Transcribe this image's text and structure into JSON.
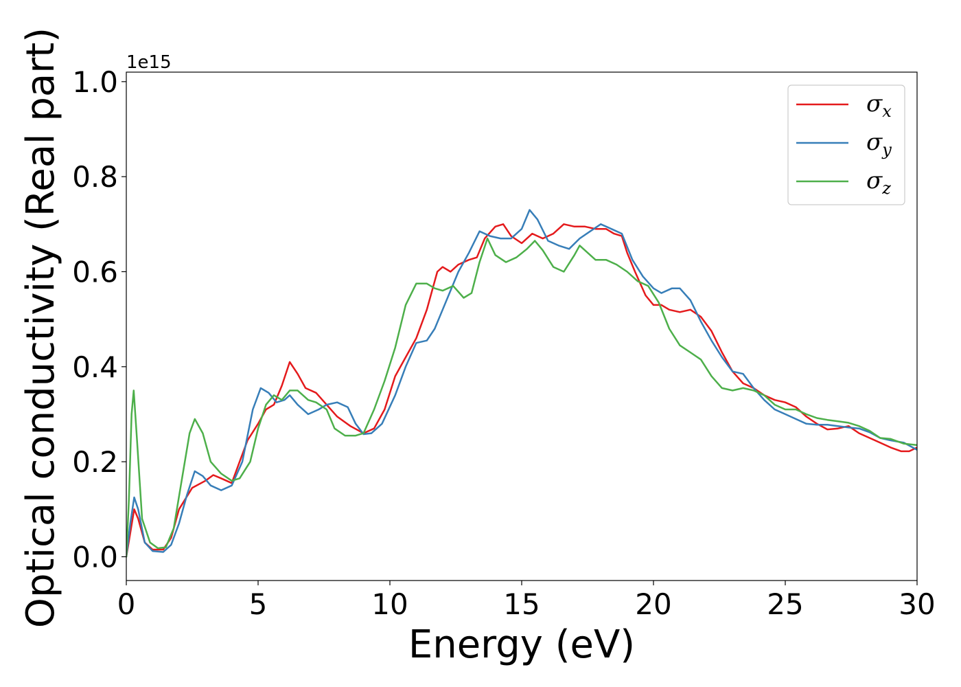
{
  "chart_data": {
    "type": "line",
    "title": "",
    "xlabel": "Energy (eV)",
    "ylabel": "Optical conductivity (Real part)",
    "y_offset_label": "1e15",
    "xlim": [
      0,
      30
    ],
    "ylim": [
      -0.05,
      1.02
    ],
    "xticks": [
      0,
      5,
      10,
      15,
      20,
      25,
      30
    ],
    "xtick_labels": [
      "0",
      "5",
      "10",
      "15",
      "20",
      "25",
      "30"
    ],
    "yticks": [
      0.0,
      0.2,
      0.4,
      0.6,
      0.8,
      1.0
    ],
    "ytick_labels": [
      "0.0",
      "0.2",
      "0.4",
      "0.6",
      "0.8",
      "1.0"
    ],
    "grid": false,
    "legend_position": "top-right",
    "series": [
      {
        "name": "σx",
        "symbol": "σ",
        "subscript": "x",
        "color": "#e41a1c",
        "points": [
          [
            0,
            0.0
          ],
          [
            0.15,
            0.05
          ],
          [
            0.3,
            0.1
          ],
          [
            0.45,
            0.08
          ],
          [
            0.7,
            0.03
          ],
          [
            1.0,
            0.015
          ],
          [
            1.4,
            0.015
          ],
          [
            1.7,
            0.04
          ],
          [
            2.0,
            0.1
          ],
          [
            2.5,
            0.145
          ],
          [
            3.0,
            0.16
          ],
          [
            3.3,
            0.172
          ],
          [
            3.6,
            0.165
          ],
          [
            4.0,
            0.155
          ],
          [
            4.3,
            0.2
          ],
          [
            4.6,
            0.245
          ],
          [
            5.0,
            0.28
          ],
          [
            5.3,
            0.31
          ],
          [
            5.6,
            0.32
          ],
          [
            5.9,
            0.36
          ],
          [
            6.2,
            0.41
          ],
          [
            6.5,
            0.385
          ],
          [
            6.8,
            0.355
          ],
          [
            7.2,
            0.345
          ],
          [
            7.6,
            0.32
          ],
          [
            8.0,
            0.295
          ],
          [
            8.5,
            0.275
          ],
          [
            9.0,
            0.26
          ],
          [
            9.4,
            0.27
          ],
          [
            9.8,
            0.31
          ],
          [
            10.2,
            0.38
          ],
          [
            10.6,
            0.42
          ],
          [
            11.0,
            0.46
          ],
          [
            11.4,
            0.52
          ],
          [
            11.8,
            0.6
          ],
          [
            12.0,
            0.61
          ],
          [
            12.3,
            0.6
          ],
          [
            12.6,
            0.615
          ],
          [
            13.0,
            0.625
          ],
          [
            13.3,
            0.63
          ],
          [
            13.6,
            0.67
          ],
          [
            14.0,
            0.695
          ],
          [
            14.3,
            0.7
          ],
          [
            14.6,
            0.675
          ],
          [
            15.0,
            0.66
          ],
          [
            15.4,
            0.68
          ],
          [
            15.8,
            0.67
          ],
          [
            16.2,
            0.68
          ],
          [
            16.6,
            0.7
          ],
          [
            17.0,
            0.695
          ],
          [
            17.4,
            0.695
          ],
          [
            17.8,
            0.69
          ],
          [
            18.2,
            0.69
          ],
          [
            18.5,
            0.68
          ],
          [
            18.8,
            0.675
          ],
          [
            19.0,
            0.64
          ],
          [
            19.3,
            0.6
          ],
          [
            19.7,
            0.55
          ],
          [
            20.0,
            0.53
          ],
          [
            20.3,
            0.53
          ],
          [
            20.6,
            0.52
          ],
          [
            21.0,
            0.515
          ],
          [
            21.4,
            0.52
          ],
          [
            21.8,
            0.505
          ],
          [
            22.2,
            0.475
          ],
          [
            22.6,
            0.43
          ],
          [
            23.0,
            0.39
          ],
          [
            23.4,
            0.365
          ],
          [
            23.8,
            0.355
          ],
          [
            24.2,
            0.34
          ],
          [
            24.6,
            0.33
          ],
          [
            25.0,
            0.325
          ],
          [
            25.4,
            0.315
          ],
          [
            25.8,
            0.295
          ],
          [
            26.2,
            0.28
          ],
          [
            26.6,
            0.268
          ],
          [
            27.0,
            0.27
          ],
          [
            27.4,
            0.275
          ],
          [
            27.8,
            0.26
          ],
          [
            28.2,
            0.25
          ],
          [
            28.6,
            0.24
          ],
          [
            29.0,
            0.23
          ],
          [
            29.4,
            0.222
          ],
          [
            29.7,
            0.222
          ],
          [
            30.0,
            0.23
          ]
        ]
      },
      {
        "name": "σy",
        "symbol": "σ",
        "subscript": "y",
        "color": "#377eb8",
        "points": [
          [
            0,
            0.0
          ],
          [
            0.15,
            0.07
          ],
          [
            0.3,
            0.125
          ],
          [
            0.45,
            0.1
          ],
          [
            0.7,
            0.03
          ],
          [
            1.0,
            0.012
          ],
          [
            1.4,
            0.01
          ],
          [
            1.7,
            0.025
          ],
          [
            2.0,
            0.07
          ],
          [
            2.3,
            0.13
          ],
          [
            2.6,
            0.18
          ],
          [
            2.9,
            0.17
          ],
          [
            3.2,
            0.15
          ],
          [
            3.6,
            0.14
          ],
          [
            4.0,
            0.15
          ],
          [
            4.4,
            0.2
          ],
          [
            4.8,
            0.31
          ],
          [
            5.1,
            0.355
          ],
          [
            5.4,
            0.345
          ],
          [
            5.7,
            0.325
          ],
          [
            6.0,
            0.33
          ],
          [
            6.2,
            0.34
          ],
          [
            6.5,
            0.32
          ],
          [
            6.9,
            0.3
          ],
          [
            7.3,
            0.31
          ],
          [
            7.6,
            0.32
          ],
          [
            8.0,
            0.325
          ],
          [
            8.4,
            0.315
          ],
          [
            8.7,
            0.28
          ],
          [
            9.0,
            0.258
          ],
          [
            9.3,
            0.26
          ],
          [
            9.7,
            0.28
          ],
          [
            10.2,
            0.34
          ],
          [
            10.6,
            0.4
          ],
          [
            11.0,
            0.45
          ],
          [
            11.4,
            0.455
          ],
          [
            11.7,
            0.48
          ],
          [
            12.0,
            0.52
          ],
          [
            12.3,
            0.56
          ],
          [
            12.6,
            0.6
          ],
          [
            13.0,
            0.64
          ],
          [
            13.4,
            0.685
          ],
          [
            13.8,
            0.675
          ],
          [
            14.2,
            0.67
          ],
          [
            14.6,
            0.67
          ],
          [
            15.0,
            0.69
          ],
          [
            15.3,
            0.73
          ],
          [
            15.6,
            0.71
          ],
          [
            16.0,
            0.665
          ],
          [
            16.4,
            0.655
          ],
          [
            16.8,
            0.648
          ],
          [
            17.2,
            0.67
          ],
          [
            17.6,
            0.685
          ],
          [
            18.0,
            0.7
          ],
          [
            18.4,
            0.69
          ],
          [
            18.8,
            0.68
          ],
          [
            19.2,
            0.625
          ],
          [
            19.6,
            0.59
          ],
          [
            20.0,
            0.565
          ],
          [
            20.3,
            0.555
          ],
          [
            20.7,
            0.565
          ],
          [
            21.0,
            0.565
          ],
          [
            21.4,
            0.54
          ],
          [
            21.8,
            0.495
          ],
          [
            22.2,
            0.455
          ],
          [
            22.6,
            0.42
          ],
          [
            23.0,
            0.39
          ],
          [
            23.4,
            0.385
          ],
          [
            23.8,
            0.355
          ],
          [
            24.2,
            0.33
          ],
          [
            24.6,
            0.31
          ],
          [
            25.0,
            0.3
          ],
          [
            25.4,
            0.29
          ],
          [
            25.8,
            0.28
          ],
          [
            26.2,
            0.278
          ],
          [
            26.6,
            0.278
          ],
          [
            27.0,
            0.275
          ],
          [
            27.4,
            0.272
          ],
          [
            27.8,
            0.27
          ],
          [
            28.2,
            0.262
          ],
          [
            28.6,
            0.25
          ],
          [
            29.0,
            0.245
          ],
          [
            29.5,
            0.24
          ],
          [
            30.0,
            0.225
          ]
        ]
      },
      {
        "name": "σz",
        "symbol": "σ",
        "subscript": "z",
        "color": "#4daf4a",
        "points": [
          [
            0,
            0.0
          ],
          [
            0.1,
            0.12
          ],
          [
            0.2,
            0.3
          ],
          [
            0.28,
            0.35
          ],
          [
            0.4,
            0.25
          ],
          [
            0.6,
            0.08
          ],
          [
            0.9,
            0.03
          ],
          [
            1.2,
            0.018
          ],
          [
            1.5,
            0.02
          ],
          [
            1.8,
            0.06
          ],
          [
            2.1,
            0.16
          ],
          [
            2.4,
            0.26
          ],
          [
            2.6,
            0.29
          ],
          [
            2.9,
            0.26
          ],
          [
            3.2,
            0.2
          ],
          [
            3.6,
            0.175
          ],
          [
            4.0,
            0.16
          ],
          [
            4.3,
            0.165
          ],
          [
            4.7,
            0.2
          ],
          [
            5.0,
            0.27
          ],
          [
            5.3,
            0.32
          ],
          [
            5.6,
            0.34
          ],
          [
            5.9,
            0.33
          ],
          [
            6.2,
            0.35
          ],
          [
            6.5,
            0.35
          ],
          [
            6.9,
            0.33
          ],
          [
            7.2,
            0.325
          ],
          [
            7.6,
            0.31
          ],
          [
            7.9,
            0.27
          ],
          [
            8.3,
            0.255
          ],
          [
            8.7,
            0.255
          ],
          [
            9.0,
            0.26
          ],
          [
            9.4,
            0.31
          ],
          [
            9.8,
            0.37
          ],
          [
            10.2,
            0.44
          ],
          [
            10.6,
            0.53
          ],
          [
            11.0,
            0.575
          ],
          [
            11.4,
            0.575
          ],
          [
            11.7,
            0.565
          ],
          [
            12.0,
            0.56
          ],
          [
            12.4,
            0.57
          ],
          [
            12.8,
            0.545
          ],
          [
            13.1,
            0.555
          ],
          [
            13.4,
            0.62
          ],
          [
            13.7,
            0.67
          ],
          [
            14.0,
            0.635
          ],
          [
            14.4,
            0.62
          ],
          [
            14.8,
            0.63
          ],
          [
            15.2,
            0.648
          ],
          [
            15.5,
            0.665
          ],
          [
            15.8,
            0.645
          ],
          [
            16.2,
            0.61
          ],
          [
            16.6,
            0.6
          ],
          [
            17.0,
            0.635
          ],
          [
            17.2,
            0.655
          ],
          [
            17.5,
            0.64
          ],
          [
            17.8,
            0.625
          ],
          [
            18.2,
            0.625
          ],
          [
            18.6,
            0.615
          ],
          [
            19.0,
            0.6
          ],
          [
            19.4,
            0.58
          ],
          [
            19.8,
            0.57
          ],
          [
            20.2,
            0.535
          ],
          [
            20.6,
            0.48
          ],
          [
            21.0,
            0.445
          ],
          [
            21.4,
            0.43
          ],
          [
            21.8,
            0.415
          ],
          [
            22.2,
            0.38
          ],
          [
            22.6,
            0.355
          ],
          [
            23.0,
            0.35
          ],
          [
            23.4,
            0.355
          ],
          [
            23.8,
            0.35
          ],
          [
            24.2,
            0.34
          ],
          [
            24.6,
            0.32
          ],
          [
            25.0,
            0.31
          ],
          [
            25.4,
            0.31
          ],
          [
            25.8,
            0.3
          ],
          [
            26.2,
            0.292
          ],
          [
            26.6,
            0.288
          ],
          [
            27.0,
            0.285
          ],
          [
            27.4,
            0.282
          ],
          [
            27.8,
            0.275
          ],
          [
            28.2,
            0.265
          ],
          [
            28.6,
            0.25
          ],
          [
            29.0,
            0.248
          ],
          [
            29.5,
            0.238
          ],
          [
            30.0,
            0.235
          ]
        ]
      }
    ]
  }
}
